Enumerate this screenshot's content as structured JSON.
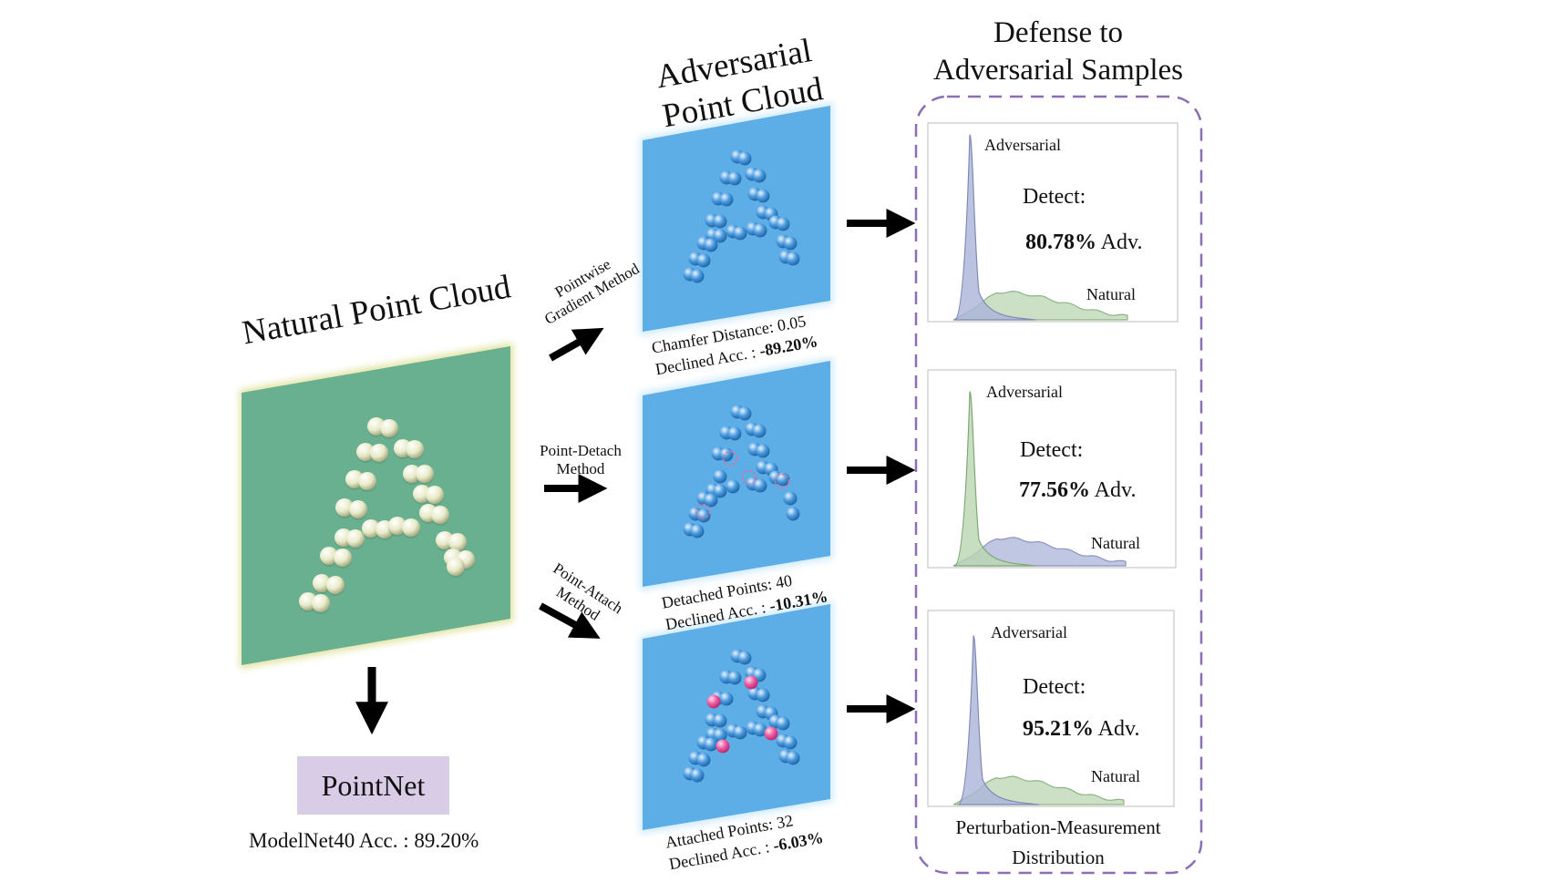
{
  "left": {
    "title": "Natural Point Cloud",
    "model_label": "PointNet",
    "accuracy_text": "ModelNet40 Acc. : 89.20%",
    "panel_color": "#68b08f",
    "sphere_color": "#e6e8c8"
  },
  "middle": {
    "title_line1": "Adversarial",
    "title_line2": "Point Cloud",
    "panel_color": "#5daee6",
    "sphere_color": "#3b8fd8",
    "attach_color": "#ef5aa2",
    "methods": [
      {
        "name": "Pointwise Gradient Method",
        "name_line1": "Pointwise",
        "name_line2": "Gradient Method",
        "stat_line1": "Chamfer Distance: 0.05",
        "stat_prefix": "Declined Acc. : ",
        "stat_value": "-89.20%"
      },
      {
        "name": "Point-Detach Method",
        "name_line1": "Point-Detach",
        "name_line2": "Method",
        "stat_line1": "Detached Points: 40",
        "stat_prefix": "Declined Acc. : ",
        "stat_value": "-10.31%"
      },
      {
        "name": "Point-Attach Method",
        "name_line1": "Point-Attach",
        "name_line2": "Method",
        "stat_line1": "Attached Points: 32",
        "stat_prefix": "Declined Acc. : ",
        "stat_value": "-6.03%"
      }
    ]
  },
  "right": {
    "title_line1": "Defense to",
    "title_line2": "Adversarial Samples",
    "border_color": "#8a6fb3",
    "adversarial_color": "#aab4d8",
    "natural_color": "#b9d6b0",
    "panels": [
      {
        "adversarial_label": "Adversarial",
        "natural_label": "Natural",
        "detect_label": "Detect:",
        "detect_value": "80.78%",
        "detect_suffix": " Adv."
      },
      {
        "adversarial_label": "Adversarial",
        "natural_label": "Natural",
        "detect_label": "Detect:",
        "detect_value": "77.56%",
        "detect_suffix": " Adv."
      },
      {
        "adversarial_label": "Adversarial",
        "natural_label": "Natural",
        "detect_label": "Detect:",
        "detect_value": "95.21%",
        "detect_suffix": " Adv."
      }
    ],
    "caption_line1": "Perturbation-Measurement",
    "caption_line2": "Distribution"
  }
}
